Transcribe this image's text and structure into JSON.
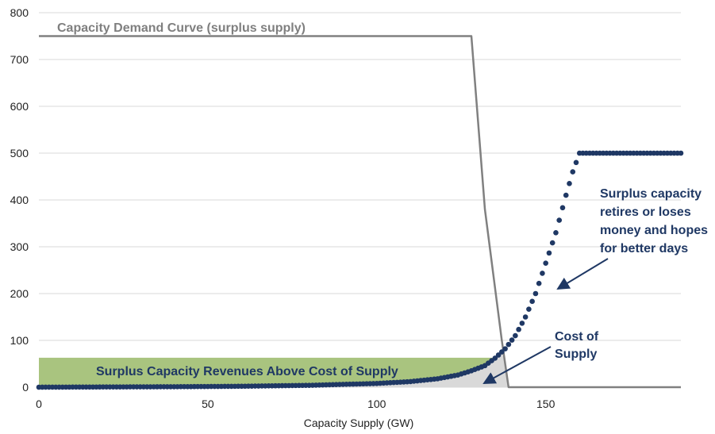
{
  "chart_data": {
    "type": "scatter",
    "xlabel": "Capacity Supply (GW)",
    "ylabel": "",
    "xlim": [
      0,
      190
    ],
    "ylim": [
      0,
      800
    ],
    "x_ticks": [
      "0",
      "50",
      "100",
      "150"
    ],
    "y_ticks": [
      "0",
      "100",
      "200",
      "300",
      "400",
      "500",
      "600",
      "700",
      "800"
    ],
    "grid": "horizontal",
    "legend": "none",
    "series": [
      {
        "name": "Capacity Demand Curve (surplus supply)",
        "kind": "line",
        "color": "#808080",
        "points": [
          [
            0,
            750
          ],
          [
            128,
            750
          ],
          [
            132,
            380
          ],
          [
            137,
            100
          ],
          [
            139,
            0
          ],
          [
            190,
            0
          ]
        ]
      },
      {
        "name": "Cost of Supply",
        "kind": "dots",
        "color": "#1f3864",
        "points": [
          [
            0,
            0
          ],
          [
            20,
            0.5
          ],
          [
            40,
            1
          ],
          [
            60,
            2
          ],
          [
            80,
            4
          ],
          [
            100,
            8
          ],
          [
            110,
            12
          ],
          [
            118,
            18
          ],
          [
            124,
            26
          ],
          [
            128,
            35
          ],
          [
            132,
            46
          ],
          [
            135,
            62
          ],
          [
            138,
            82
          ],
          [
            141,
            110
          ],
          [
            144,
            150
          ],
          [
            147,
            200
          ],
          [
            150,
            265
          ],
          [
            153,
            330
          ],
          [
            156,
            410
          ],
          [
            158,
            460
          ],
          [
            160,
            500
          ],
          [
            190,
            500
          ]
        ]
      }
    ],
    "shaded_regions": [
      {
        "name": "Surplus Capacity Revenues Above Cost of Supply",
        "color": "#a9c47f",
        "y": 63,
        "x_from": 0,
        "x_to": 136
      },
      {
        "name": "cost-area",
        "color": "#d9d9d9",
        "x_from": 0,
        "x_to": 139
      }
    ],
    "annotations": [
      {
        "text": "Capacity Demand Curve (surplus supply)",
        "color": "#7f7f7f"
      },
      {
        "text": "Surplus Capacity Revenues Above Cost of Supply",
        "color": "#1f3864"
      },
      {
        "text": "Cost of Supply",
        "lines": [
          "Cost of",
          "Supply"
        ],
        "color": "#1f3864"
      },
      {
        "text": "Surplus capacity retires or loses money and hopes for better days",
        "lines": [
          "Surplus capacity",
          "retires or loses",
          "money and hopes",
          "for better days"
        ],
        "color": "#1f3864"
      }
    ]
  }
}
